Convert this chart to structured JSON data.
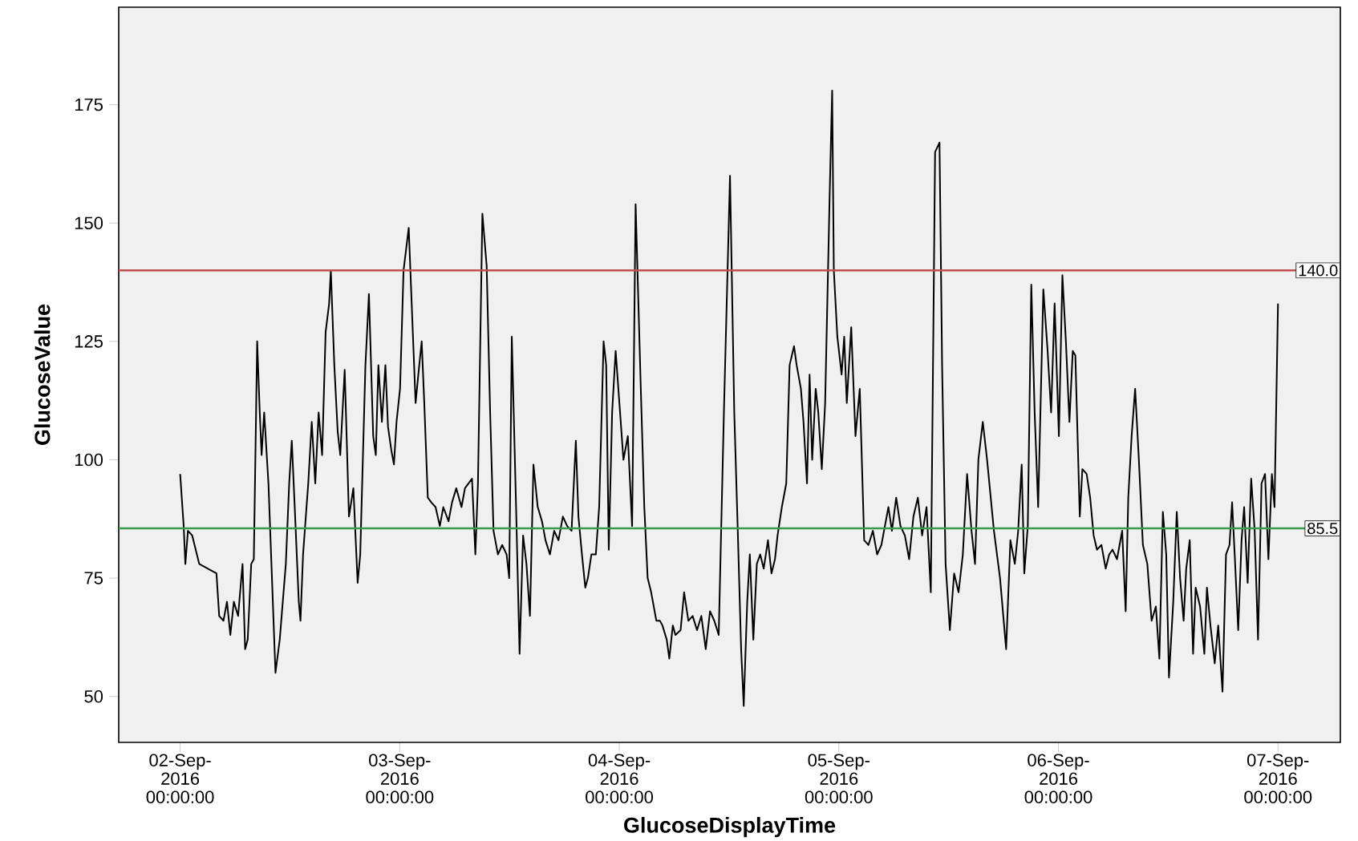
{
  "chart_data": {
    "type": "line",
    "xlabel": "GlucoseDisplayTime",
    "ylabel": "GlucoseValue",
    "color": "#000000",
    "x": [
      "2016-09-02T00:00",
      "2016-09-02T00:23",
      "2016-09-02T00:34",
      "2016-09-02T00:51",
      "2016-09-02T01:19",
      "2016-09-02T02:05",
      "2016-09-02T03:02",
      "2016-09-02T03:58",
      "2016-09-02T04:16",
      "2016-09-02T04:44",
      "2016-09-02T05:07",
      "2016-09-02T05:29",
      "2016-09-02T05:52",
      "2016-09-02T06:20",
      "2016-09-02T06:49",
      "2016-09-02T07:06",
      "2016-09-02T07:23",
      "2016-09-02T07:46",
      "2016-09-02T08:03",
      "2016-09-02T08:25",
      "2016-09-02T08:42",
      "2016-09-02T08:54",
      "2016-09-02T09:11",
      "2016-09-02T09:39",
      "2016-09-02T10:25",
      "2016-09-02T10:53",
      "2016-09-02T11:33",
      "2016-09-02T11:55",
      "2016-09-02T12:12",
      "2016-09-02T12:30",
      "2016-09-02T12:58",
      "2016-09-02T13:09",
      "2016-09-02T13:26",
      "2016-09-02T14:00",
      "2016-09-02T14:23",
      "2016-09-02T14:46",
      "2016-09-02T15:08",
      "2016-09-02T15:31",
      "2016-09-02T15:54",
      "2016-09-02T16:17",
      "2016-09-02T16:28",
      "2016-09-02T16:51",
      "2016-09-02T17:13",
      "2016-09-02T17:30",
      "2016-09-02T17:59",
      "2016-09-02T18:27",
      "2016-09-02T18:56",
      "2016-09-02T19:24",
      "2016-09-02T19:41",
      "2016-09-02T20:15",
      "2016-09-02T20:38",
      "2016-09-02T21:06",
      "2016-09-02T21:23",
      "2016-09-02T21:40",
      "2016-09-02T22:03",
      "2016-09-02T22:26",
      "2016-09-02T22:43",
      "2016-09-02T23:05",
      "2016-09-02T23:22",
      "2016-09-02T23:39",
      "2016-09-03T00:02",
      "2016-09-03T00:25",
      "2016-09-03T00:59",
      "2016-09-03T01:22",
      "2016-09-03T01:44",
      "2016-09-03T02:02",
      "2016-09-03T02:24",
      "2016-09-03T02:41",
      "2016-09-03T03:04",
      "2016-09-03T03:27",
      "2016-09-03T03:55",
      "2016-09-03T04:23",
      "2016-09-03T04:46",
      "2016-09-03T05:20",
      "2016-09-03T05:43",
      "2016-09-03T06:11",
      "2016-09-03T06:45",
      "2016-09-03T07:08",
      "2016-09-03T07:54",
      "2016-09-03T08:16",
      "2016-09-03T08:33",
      "2016-09-03T09:02",
      "2016-09-03T09:30",
      "2016-09-03T09:53",
      "2016-09-03T10:15",
      "2016-09-03T10:44",
      "2016-09-03T11:12",
      "2016-09-03T11:41",
      "2016-09-03T11:58",
      "2016-09-03T12:15",
      "2016-09-03T12:43",
      "2016-09-03T13:06",
      "2016-09-03T13:29",
      "2016-09-03T13:51",
      "2016-09-03T14:14",
      "2016-09-03T14:37",
      "2016-09-03T15:05",
      "2016-09-03T15:33",
      "2016-09-03T15:56",
      "2016-09-03T16:25",
      "2016-09-03T16:53",
      "2016-09-03T17:21",
      "2016-09-03T17:50",
      "2016-09-03T18:18",
      "2016-09-03T18:47",
      "2016-09-03T19:15",
      "2016-09-03T19:32",
      "2016-09-03T19:55",
      "2016-09-03T20:17",
      "2016-09-03T20:34",
      "2016-09-03T20:57",
      "2016-09-03T21:26",
      "2016-09-03T21:48",
      "2016-09-03T22:17",
      "2016-09-03T22:34",
      "2016-09-03T22:51",
      "2016-09-03T23:13",
      "2016-09-03T23:36",
      "2016-09-04T00:05",
      "2016-09-04T00:27",
      "2016-09-04T00:56",
      "2016-09-04T01:24",
      "2016-09-04T01:47",
      "2016-09-04T02:21",
      "2016-09-04T02:44",
      "2016-09-04T03:06",
      "2016-09-04T03:29",
      "2016-09-04T04:03",
      "2016-09-04T04:26",
      "2016-09-04T04:43",
      "2016-09-04T05:11",
      "2016-09-04T05:28",
      "2016-09-04T05:51",
      "2016-09-04T06:08",
      "2016-09-04T06:42",
      "2016-09-04T07:05",
      "2016-09-04T07:33",
      "2016-09-04T08:01",
      "2016-09-04T08:30",
      "2016-09-04T08:58",
      "2016-09-04T09:27",
      "2016-09-04T09:55",
      "2016-09-04T10:23",
      "2016-09-04T10:52",
      "2016-09-04T11:26",
      "2016-09-04T12:06",
      "2016-09-04T12:34",
      "2016-09-04T12:57",
      "2016-09-04T13:19",
      "2016-09-04T13:36",
      "2016-09-04T13:59",
      "2016-09-04T14:16",
      "2016-09-04T14:39",
      "2016-09-04T15:02",
      "2016-09-04T15:24",
      "2016-09-04T15:47",
      "2016-09-04T16:15",
      "2016-09-04T16:38",
      "2016-09-04T17:01",
      "2016-09-04T17:18",
      "2016-09-04T17:46",
      "2016-09-04T18:15",
      "2016-09-04T18:37",
      "2016-09-04T19:06",
      "2016-09-04T19:23",
      "2016-09-04T19:51",
      "2016-09-04T20:08",
      "2016-09-04T20:31",
      "2016-09-04T20:48",
      "2016-09-04T21:05",
      "2016-09-04T21:28",
      "2016-09-04T21:45",
      "2016-09-04T22:08",
      "2016-09-04T22:30",
      "2016-09-04T22:59",
      "2016-09-04T23:16",
      "2016-09-04T23:27",
      "2016-09-04T23:50",
      "2016-09-05T00:18",
      "2016-09-05T00:35",
      "2016-09-05T00:52",
      "2016-09-05T01:21",
      "2016-09-05T01:49",
      "2016-09-05T02:17",
      "2016-09-05T02:46",
      "2016-09-05T03:14",
      "2016-09-05T03:43",
      "2016-09-05T04:11",
      "2016-09-05T04:39",
      "2016-09-05T05:02",
      "2016-09-05T05:25",
      "2016-09-05T05:48",
      "2016-09-05T06:16",
      "2016-09-05T06:44",
      "2016-09-05T07:13",
      "2016-09-05T07:41",
      "2016-09-05T08:09",
      "2016-09-05T08:38",
      "2016-09-05T09:06",
      "2016-09-05T09:35",
      "2016-09-05T10:03",
      "2016-09-05T10:31",
      "2016-09-05T11:00",
      "2016-09-05T11:17",
      "2016-09-05T11:40",
      "2016-09-05T12:08",
      "2016-09-05T12:36",
      "2016-09-05T13:05",
      "2016-09-05T13:33",
      "2016-09-05T14:01",
      "2016-09-05T14:30",
      "2016-09-05T14:53",
      "2016-09-05T15:15",
      "2016-09-05T15:44",
      "2016-09-05T16:12",
      "2016-09-05T16:57",
      "2016-09-05T17:37",
      "2016-09-05T18:17",
      "2016-09-05T18:45",
      "2016-09-05T19:14",
      "2016-09-05T19:36",
      "2016-09-05T19:59",
      "2016-09-05T20:16",
      "2016-09-05T20:39",
      "2016-09-05T21:02",
      "2016-09-05T21:24",
      "2016-09-05T21:47",
      "2016-09-05T22:21",
      "2016-09-05T22:49",
      "2016-09-05T23:12",
      "2016-09-05T23:35",
      "2016-09-06T00:03",
      "2016-09-06T00:26",
      "2016-09-06T00:49",
      "2016-09-06T01:12",
      "2016-09-06T01:34",
      "2016-09-06T01:51",
      "2016-09-06T02:20",
      "2016-09-06T02:37",
      "2016-09-06T03:05",
      "2016-09-06T03:28",
      "2016-09-06T03:51",
      "2016-09-06T04:13",
      "2016-09-06T04:42",
      "2016-09-06T05:10",
      "2016-09-06T05:33",
      "2016-09-06T05:55",
      "2016-09-06T06:24",
      "2016-09-06T06:58",
      "2016-09-06T07:21",
      "2016-09-06T07:38",
      "2016-09-06T08:00",
      "2016-09-06T08:23",
      "2016-09-06T08:46",
      "2016-09-06T09:14",
      "2016-09-06T09:43",
      "2016-09-06T10:11",
      "2016-09-06T10:39",
      "2016-09-06T11:02",
      "2016-09-06T11:25",
      "2016-09-06T11:47",
      "2016-09-06T12:05",
      "2016-09-06T12:33",
      "2016-09-06T12:56",
      "2016-09-06T13:18",
      "2016-09-06T13:41",
      "2016-09-06T13:58",
      "2016-09-06T14:21",
      "2016-09-06T14:43",
      "2016-09-06T15:00",
      "2016-09-06T15:29",
      "2016-09-06T15:57",
      "2016-09-06T16:14",
      "2016-09-06T16:37",
      "2016-09-06T17:05",
      "2016-09-06T17:28",
      "2016-09-06T17:56",
      "2016-09-06T18:19",
      "2016-09-06T18:42",
      "2016-09-06T18:59",
      "2016-09-06T19:16",
      "2016-09-06T19:39",
      "2016-09-06T20:01",
      "2016-09-06T20:18",
      "2016-09-06T20:41",
      "2016-09-06T21:04",
      "2016-09-06T21:27",
      "2016-09-06T21:49",
      "2016-09-06T22:12",
      "2016-09-06T22:35",
      "2016-09-06T22:57",
      "2016-09-06T23:20",
      "2016-09-06T23:37",
      "2016-09-07T00:00"
    ],
    "values": [
      97,
      86,
      78,
      85,
      84,
      78,
      77,
      76,
      67,
      66,
      70,
      63,
      70,
      67,
      78,
      60,
      62,
      78,
      79,
      125,
      110,
      101,
      110,
      95,
      55,
      62,
      78,
      95,
      104,
      91,
      70,
      66,
      80,
      95,
      108,
      95,
      110,
      101,
      127,
      133,
      140,
      120,
      106,
      101,
      119,
      88,
      94,
      74,
      80,
      120,
      135,
      105,
      101,
      120,
      108,
      120,
      107,
      102,
      99,
      108,
      115,
      140,
      149,
      130,
      112,
      118,
      125,
      112,
      92,
      91,
      90,
      86,
      90,
      87,
      91,
      94,
      90,
      94,
      96,
      80,
      95,
      152,
      141,
      110,
      85,
      80,
      82,
      80,
      75,
      126,
      90,
      59,
      84,
      78,
      67,
      99,
      90,
      87,
      83,
      80,
      85,
      83,
      88,
      86,
      85,
      104,
      88,
      80,
      73,
      75,
      80,
      80,
      90,
      125,
      120,
      81,
      110,
      123,
      110,
      100,
      105,
      86,
      154,
      115,
      90,
      75,
      72,
      66,
      66,
      65,
      62,
      58,
      65,
      63,
      64,
      72,
      66,
      67,
      64,
      67,
      60,
      68,
      66,
      63,
      110,
      160,
      110,
      85,
      60,
      48,
      70,
      80,
      62,
      78,
      80,
      77,
      83,
      76,
      79,
      84,
      90,
      95,
      120,
      124,
      120,
      115,
      108,
      95,
      118,
      100,
      115,
      110,
      98,
      112,
      155,
      178,
      140,
      126,
      118,
      126,
      112,
      128,
      105,
      115,
      83,
      82,
      85,
      80,
      82,
      86,
      90,
      85,
      92,
      86,
      84,
      79,
      88,
      92,
      84,
      90,
      72,
      165,
      167,
      120,
      78,
      64,
      76,
      72,
      80,
      97,
      85,
      78,
      100,
      108,
      100,
      85,
      75,
      60,
      83,
      78,
      85,
      99,
      76,
      86,
      137,
      110,
      90,
      136,
      123,
      110,
      133,
      105,
      139,
      125,
      108,
      123,
      122,
      88,
      98,
      97,
      92,
      84,
      81,
      82,
      77,
      80,
      81,
      79,
      85,
      68,
      92,
      105,
      115,
      101,
      82,
      78,
      66,
      69,
      58,
      89,
      80,
      54,
      70,
      89,
      75,
      66,
      77,
      83,
      59,
      73,
      69,
      59,
      73,
      65,
      57,
      65,
      51,
      80,
      82,
      91,
      80,
      64,
      83,
      90,
      74,
      96,
      85,
      62,
      95,
      97,
      79,
      97,
      90,
      133
    ],
    "xlim": [
      "2016-09-01T17:17",
      "2016-09-07T06:49"
    ],
    "ylim": [
      40.3,
      195.6
    ],
    "xticks": [
      {
        "value": "2016-09-02T00:00",
        "label": "02-Sep-2016 00:00:00"
      },
      {
        "value": "2016-09-03T00:00",
        "label": "03-Sep-2016 00:00:00"
      },
      {
        "value": "2016-09-04T00:00",
        "label": "04-Sep-2016 00:00:00"
      },
      {
        "value": "2016-09-05T00:00",
        "label": "05-Sep-2016 00:00:00"
      },
      {
        "value": "2016-09-06T00:00",
        "label": "06-Sep-2016 00:00:00"
      },
      {
        "value": "2016-09-07T00:00",
        "label": "07-Sep-2016 00:00:00"
      }
    ],
    "yticks": [
      50,
      75,
      100,
      125,
      150,
      175
    ],
    "ref_lines": [
      {
        "axis": "y",
        "value": 140.0,
        "label": "140.0",
        "color": "#c0504d"
      },
      {
        "axis": "y",
        "value": 85.5,
        "label": "85.5",
        "color": "#3a9a4a"
      }
    ]
  }
}
